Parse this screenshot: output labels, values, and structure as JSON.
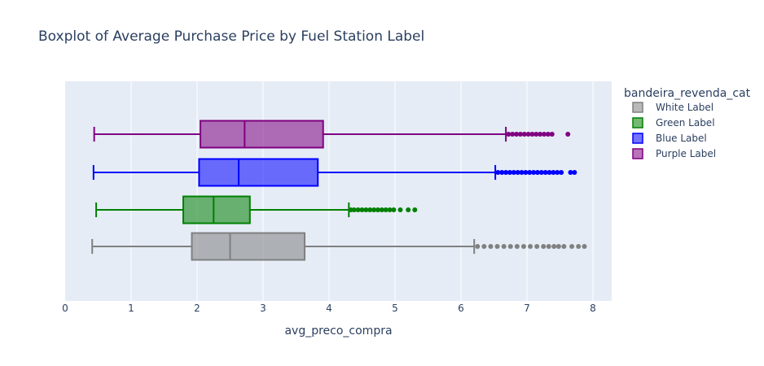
{
  "chart_data": {
    "type": "box",
    "orientation": "horizontal",
    "title": "Boxplot of Average Purchase Price by Fuel Station Label",
    "xlabel": "avg_preco_compra",
    "ylabel": "",
    "xlim": [
      0,
      8.3
    ],
    "xticks": [
      0,
      1,
      2,
      3,
      4,
      5,
      6,
      7,
      8
    ],
    "grid": true,
    "legend_title": "bandeira_revenda_cat",
    "legend_position": "top-right",
    "series": [
      {
        "name": "White Label",
        "color": "#808080",
        "min": 0.41,
        "q1": 1.92,
        "median": 2.5,
        "q3": 3.63,
        "upper_fence": 6.2,
        "outliers": [
          6.25,
          6.35,
          6.45,
          6.55,
          6.65,
          6.75,
          6.85,
          6.95,
          7.05,
          7.15,
          7.25,
          7.33,
          7.41,
          7.48,
          7.56,
          7.68,
          7.78,
          7.87
        ]
      },
      {
        "name": "Green Label",
        "color": "#008000",
        "min": 0.47,
        "q1": 1.79,
        "median": 2.25,
        "q3": 2.8,
        "upper_fence": 4.3,
        "outliers": [
          4.33,
          4.38,
          4.44,
          4.5,
          4.56,
          4.62,
          4.68,
          4.74,
          4.8,
          4.86,
          4.92,
          4.98,
          5.08,
          5.2,
          5.3
        ]
      },
      {
        "name": "Blue Label",
        "color": "#0000ff",
        "min": 0.43,
        "q1": 2.03,
        "median": 2.63,
        "q3": 3.83,
        "upper_fence": 6.52,
        "outliers": [
          6.56,
          6.62,
          6.68,
          6.74,
          6.8,
          6.86,
          6.92,
          6.98,
          7.04,
          7.1,
          7.16,
          7.22,
          7.28,
          7.34,
          7.4,
          7.46,
          7.52,
          7.66,
          7.72
        ]
      },
      {
        "name": "Purple Label",
        "color": "#800080",
        "min": 0.44,
        "q1": 2.05,
        "median": 2.72,
        "q3": 3.91,
        "upper_fence": 6.68,
        "outliers": [
          6.72,
          6.78,
          6.84,
          6.9,
          6.96,
          7.02,
          7.08,
          7.14,
          7.2,
          7.26,
          7.32,
          7.38,
          7.62
        ]
      }
    ]
  }
}
